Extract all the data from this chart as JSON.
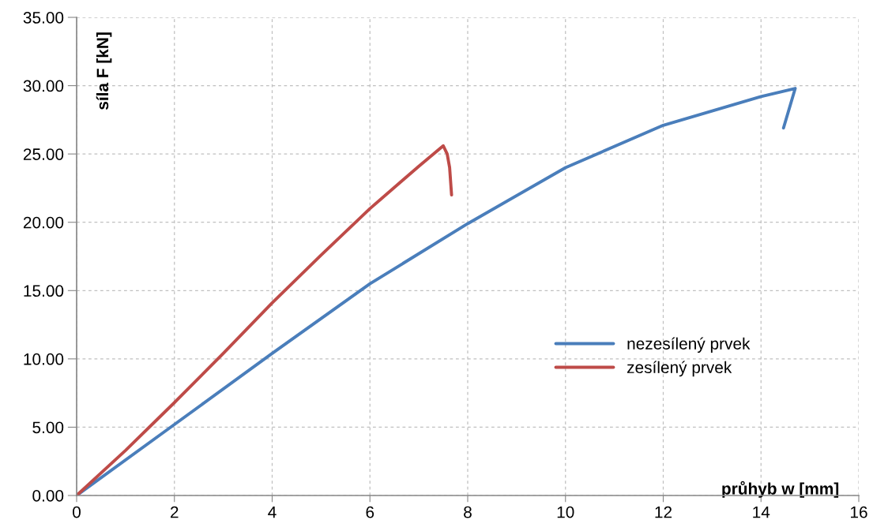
{
  "chart_data": {
    "type": "line",
    "xlabel": "průhyb w [mm]",
    "ylabel": "síla F [kN]",
    "xlim": [
      0,
      16
    ],
    "xticks": [
      0,
      2,
      4,
      6,
      8,
      10,
      12,
      14,
      16
    ],
    "ylim": [
      0,
      35
    ],
    "yticks": [
      {
        "value": 0,
        "label": "0.00"
      },
      {
        "value": 5,
        "label": "5.00"
      },
      {
        "value": 10,
        "label": "10.00"
      },
      {
        "value": 15,
        "label": "15.00"
      },
      {
        "value": 20,
        "label": "20.00"
      },
      {
        "value": 25,
        "label": "25.00"
      },
      {
        "value": 30,
        "label": "30.00"
      },
      {
        "value": 35,
        "label": "35.00"
      }
    ],
    "grid": true,
    "legend": "right",
    "marker": "none",
    "line_style": "solid",
    "series": [
      {
        "name": "nezesílený prvek",
        "color": "#4a7ebb",
        "x": [
          0,
          2,
          4,
          6,
          8,
          10,
          12,
          14,
          14.7,
          14.46
        ],
        "values": [
          0,
          5.2,
          10.4,
          15.5,
          19.9,
          24.0,
          27.1,
          29.2,
          29.8,
          26.9
        ]
      },
      {
        "name": "zesílený prvek",
        "color": "#be4b48",
        "x": [
          0,
          1,
          2,
          3,
          4,
          5,
          6,
          7,
          7.5,
          7.58,
          7.63,
          7.67
        ],
        "values": [
          0,
          3.3,
          6.8,
          10.4,
          14.1,
          17.6,
          21.0,
          24.1,
          25.6,
          25.0,
          24.0,
          22.0
        ]
      }
    ]
  }
}
